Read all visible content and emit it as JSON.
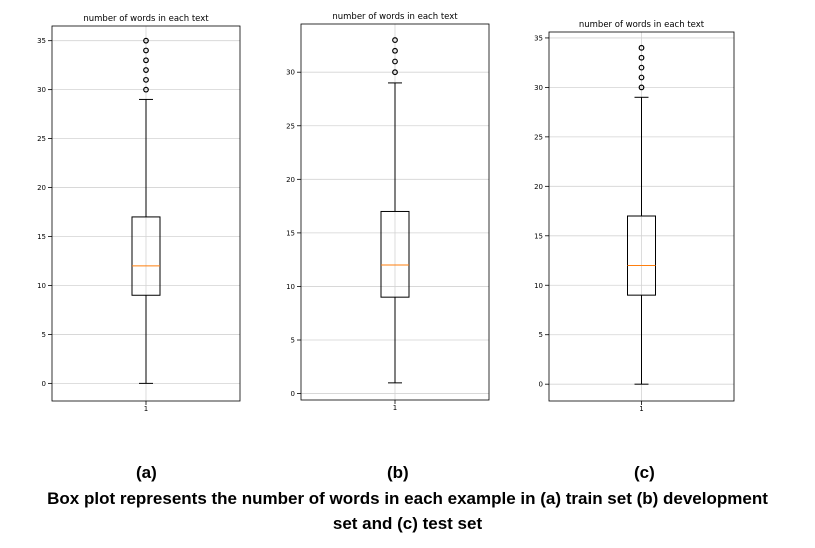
{
  "chart_data": [
    {
      "type": "box",
      "title": "number of words in each text",
      "xticks": [
        "1"
      ],
      "yticks": [
        0,
        5,
        10,
        15,
        20,
        25,
        30,
        35
      ],
      "ylim": [
        -1.8,
        36.5
      ],
      "grid": true,
      "box": {
        "whislo": 0,
        "q1": 9,
        "med": 12,
        "q3": 17,
        "whishi": 29
      },
      "fliers": [
        30,
        31,
        32,
        33,
        34,
        35
      ],
      "colors": {
        "median": "#ff7f0e",
        "box": "#000000",
        "grid": "#d3d3d3"
      }
    },
    {
      "type": "box",
      "title": "number of words in each text",
      "xticks": [
        "1"
      ],
      "yticks": [
        0,
        5,
        10,
        15,
        20,
        25,
        30
      ],
      "ylim": [
        -0.6,
        34.5
      ],
      "grid": true,
      "box": {
        "whislo": 1,
        "q1": 9,
        "med": 12,
        "q3": 17,
        "whishi": 29
      },
      "fliers": [
        30,
        31,
        32,
        33
      ],
      "colors": {
        "median": "#ff7f0e",
        "box": "#000000",
        "grid": "#d3d3d3"
      }
    },
    {
      "type": "box",
      "title": "number of words in each text",
      "xticks": [
        "1"
      ],
      "yticks": [
        0,
        5,
        10,
        15,
        20,
        25,
        30,
        35
      ],
      "ylim": [
        -1.7,
        35.6
      ],
      "grid": true,
      "box": {
        "whislo": 0,
        "q1": 9,
        "med": 12,
        "q3": 17,
        "whishi": 29
      },
      "fliers": [
        30,
        31,
        32,
        33,
        34
      ],
      "colors": {
        "median": "#ff7f0e",
        "box": "#000000",
        "grid": "#d3d3d3"
      }
    }
  ],
  "labels": {
    "a": "(a)",
    "b": "(b)",
    "c": "(c)"
  },
  "caption": {
    "line1": "Box plot represents the number of words in each example in (a) train set (b) development",
    "line2": "set and (c) test set"
  }
}
